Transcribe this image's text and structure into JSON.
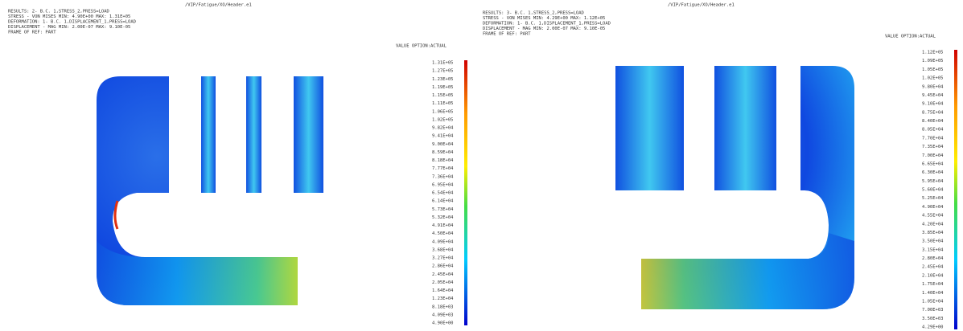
{
  "panels": [
    {
      "title": "/VIP/Fatigue/XO/Header.e1",
      "header_lines": [
        "RESULTS: 2- B.C. 1,STRESS_2,PRESS=LOAD",
        "STRESS - VON MISES MIN: 4.90E+00 MAX: 1.31E+05",
        "DEFORMATION: 1- B.C. 1,DISPLACEMENT_1,PRESS=LOAD",
        "DISPLACEMENT - MAG MIN: 2.00E-07 MAX: 9.10E-05",
        "FRAME OF REF: PART"
      ],
      "legend_label": "VALUE OPTION:ACTUAL",
      "scale_labels": [
        "1.31E+05",
        "1.27E+05",
        "1.23E+05",
        "1.19E+05",
        "1.15E+05",
        "1.11E+05",
        "1.06E+05",
        "1.02E+05",
        "9.82E+04",
        "9.41E+04",
        "9.00E+04",
        "8.59E+04",
        "8.18E+04",
        "7.77E+04",
        "7.36E+04",
        "6.95E+04",
        "6.54E+04",
        "6.14E+04",
        "5.73E+04",
        "5.32E+04",
        "4.91E+04",
        "4.50E+04",
        "4.09E+04",
        "3.68E+04",
        "3.27E+04",
        "2.86E+04",
        "2.45E+04",
        "2.05E+04",
        "1.64E+04",
        "1.23E+04",
        "8.18E+03",
        "4.09E+03",
        "4.90E+00"
      ]
    },
    {
      "title": "/VIP/Fatigue/XO/Header.e1",
      "header_lines": [
        "RESULTS: 3- B.C. 1,STRESS_2,PRESS=LOAD",
        "STRESS - VON MISES MIN: 4.29E+00 MAX: 1.12E+05",
        "DEFORMATION: 1- B.C. 1,DISPLACEMENT_1,PRESS=LOAD",
        "DISPLACEMENT - MAG MIN: 2.00E-07 MAX: 9.10E-05",
        "FRAME OF REF: PART"
      ],
      "legend_label": "VALUE OPTION:ACTUAL",
      "scale_labels": [
        "1.12E+05",
        "1.09E+05",
        "1.05E+05",
        "1.02E+05",
        "9.80E+04",
        "9.45E+04",
        "9.10E+04",
        "8.75E+04",
        "8.40E+04",
        "8.05E+04",
        "7.70E+04",
        "7.35E+04",
        "7.00E+04",
        "6.65E+04",
        "6.30E+04",
        "5.95E+04",
        "5.60E+04",
        "5.25E+04",
        "4.90E+04",
        "4.55E+04",
        "4.20E+04",
        "3.85E+04",
        "3.50E+04",
        "3.15E+04",
        "2.80E+04",
        "2.45E+04",
        "2.10E+04",
        "1.75E+04",
        "1.40E+04",
        "1.05E+04",
        "7.00E+03",
        "3.50E+03",
        "4.29E+00"
      ]
    }
  ]
}
